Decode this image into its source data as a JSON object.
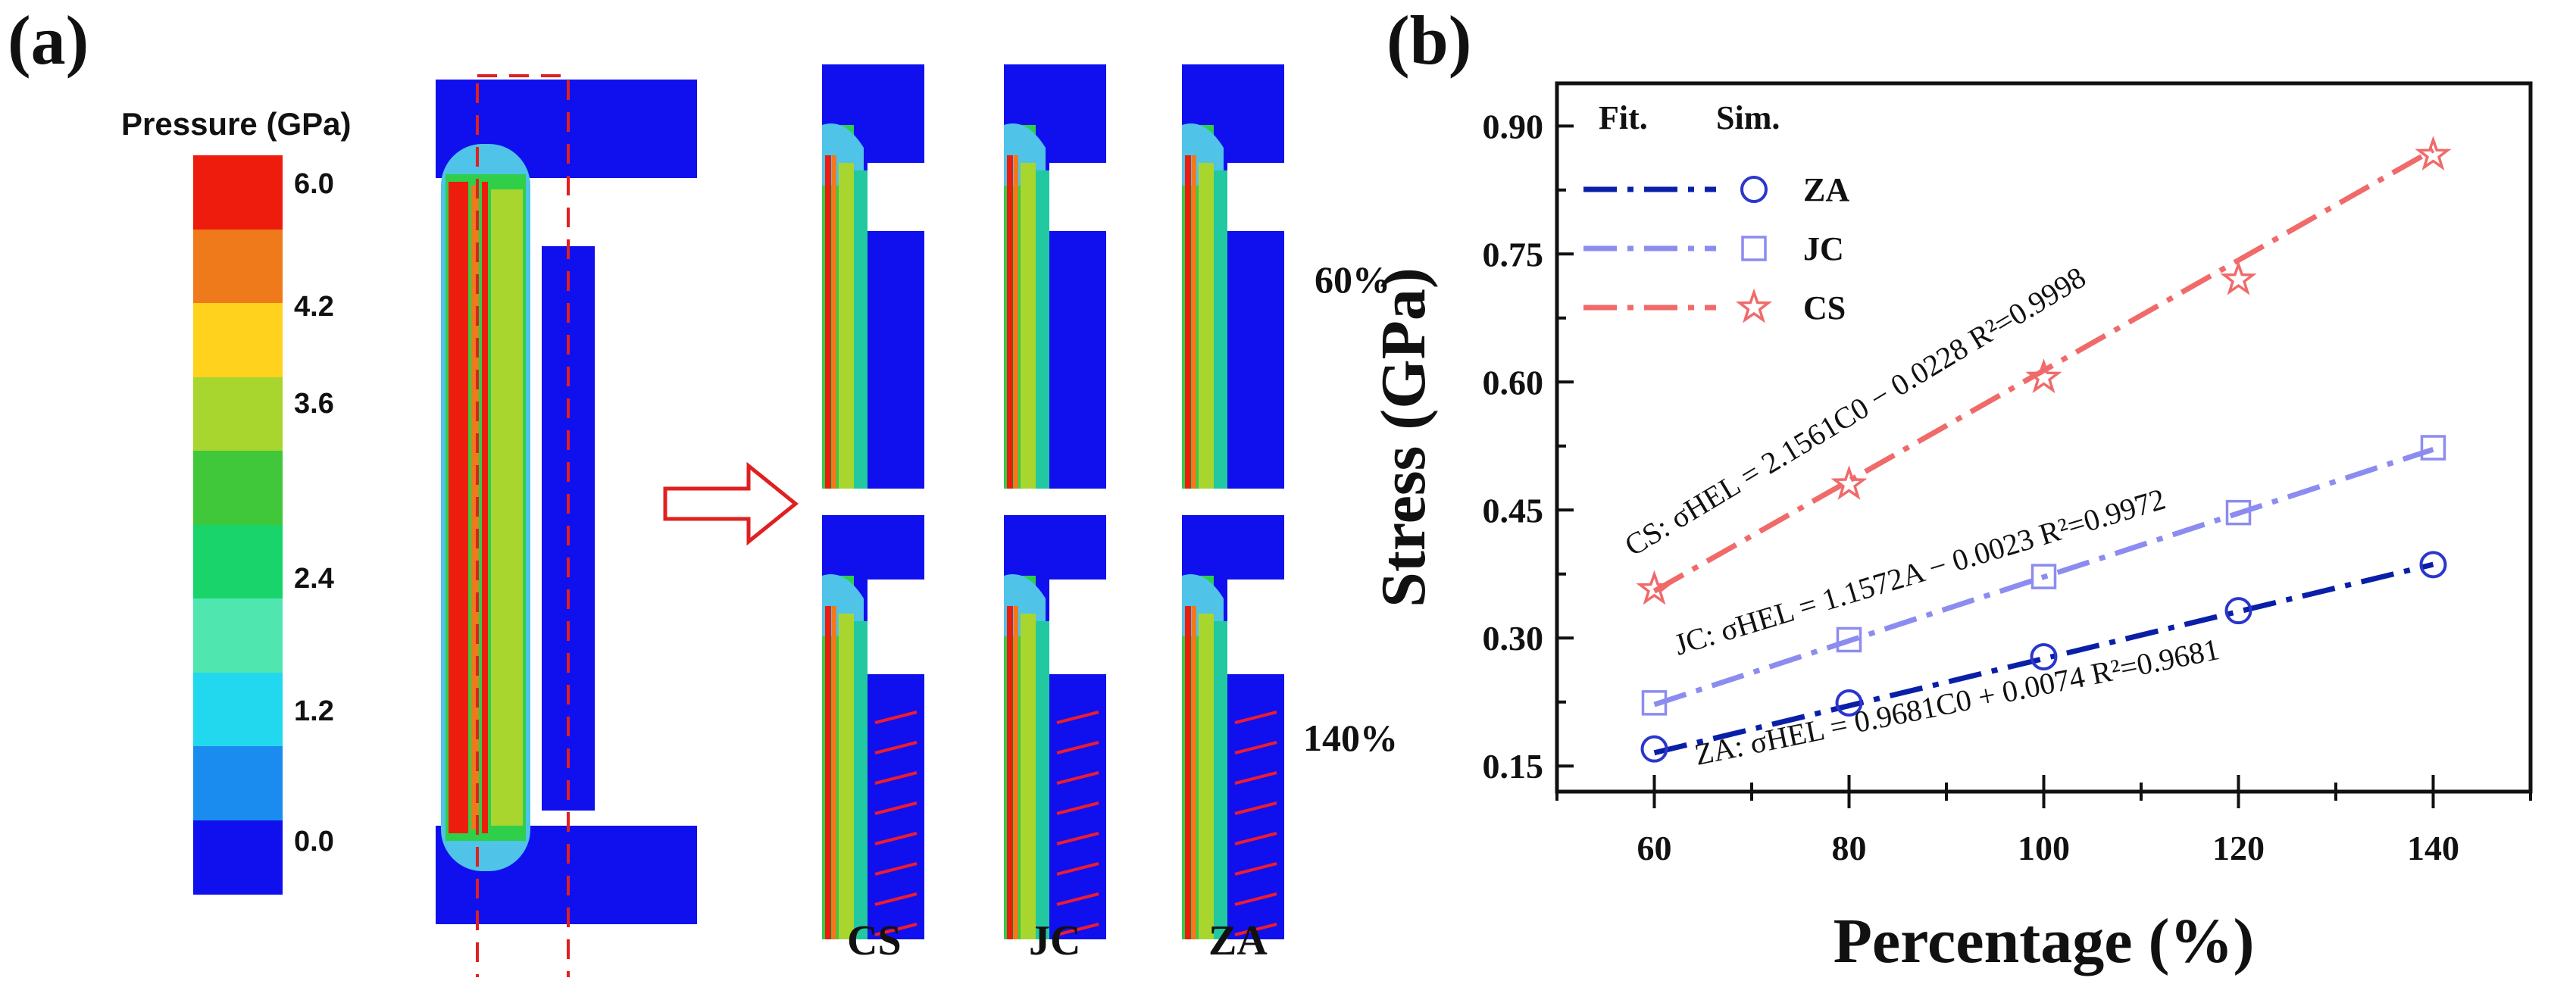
{
  "panel_a": {
    "label": "(a)",
    "colorbar": {
      "title": "Pressure (GPa)",
      "ticks": [
        "6.0",
        "4.2",
        "3.6",
        "2.4",
        "1.2",
        "0.0"
      ],
      "colors": [
        "#ee1c0c",
        "#ef7a1c",
        "#ffd21e",
        "#a8d62e",
        "#40c83a",
        "#18d46a",
        "#4fe6b0",
        "#22d8ee",
        "#1a8cf0",
        "#1010ee"
      ]
    },
    "simulation_labels": [
      "CS",
      "JC",
      "ZA"
    ],
    "percentage_labels": [
      "60%",
      "140%"
    ]
  },
  "panel_b": {
    "label": "(b)"
  },
  "chart_data": {
    "type": "scatter",
    "title": "",
    "xlabel": "Percentage (%)",
    "ylabel": "Stress (GPa)",
    "xlim": [
      50,
      150
    ],
    "ylim": [
      0.12,
      0.95
    ],
    "xticks": [
      60,
      80,
      100,
      120,
      140
    ],
    "yticks": [
      0.15,
      0.3,
      0.45,
      0.6,
      0.75,
      0.9
    ],
    "xtick_labels": [
      "60",
      "80",
      "100",
      "120",
      "140"
    ],
    "ytick_labels": [
      "0.15",
      "0.30",
      "0.45",
      "0.60",
      "0.75",
      "0.90"
    ],
    "legend": {
      "position": "top-left",
      "header_fit": "Fit.",
      "header_sim": "Sim."
    },
    "series": [
      {
        "name": "ZA",
        "marker": "circle",
        "color": "#0a1fa8",
        "marker_color": "#2a36cc",
        "x": [
          60,
          80,
          100,
          120,
          140
        ],
        "values": [
          0.17,
          0.224,
          0.278,
          0.332,
          0.386
        ],
        "fit": [
          0.1655,
          0.3862
        ],
        "equation": "ZA: σHEL = 0.9681C0 + 0.0074 R²=0.9681"
      },
      {
        "name": "JC",
        "marker": "square",
        "color": "#8c8cf0",
        "marker_color": "#8c8cf0",
        "x": [
          60,
          80,
          100,
          120,
          140
        ],
        "values": [
          0.224,
          0.298,
          0.372,
          0.447,
          0.523
        ],
        "fit": [
          0.222,
          0.521
        ],
        "equation": "JC: σHEL = 1.1572A − 0.0023 R²=0.9972"
      },
      {
        "name": "CS",
        "marker": "star",
        "color": "#f06a6a",
        "marker_color": "#f06a6a",
        "x": [
          60,
          80,
          100,
          120,
          140
        ],
        "values": [
          0.357,
          0.48,
          0.605,
          0.72,
          0.866
        ],
        "fit": [
          0.355,
          0.872
        ],
        "equation": "CS: σHEL = 2.1561C0 − 0.0228   R²=0.9998"
      }
    ]
  }
}
